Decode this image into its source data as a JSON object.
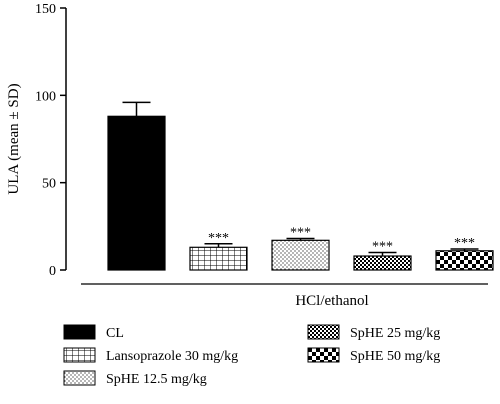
{
  "chart_data": {
    "type": "bar",
    "title": "",
    "xlabel": "HCl/ethanol",
    "ylabel": "ULA (mean ± SD)",
    "ylim": [
      0,
      150
    ],
    "yticks": [
      0,
      50,
      100,
      150
    ],
    "grid": false,
    "legend_position": "bottom",
    "series": [
      {
        "name": "CL",
        "value": 88,
        "error": 8,
        "significance": "",
        "pattern": "solid"
      },
      {
        "name": "Lansoprazole 30 mg/kg",
        "value": 13,
        "error": 2,
        "significance": "***",
        "pattern": "grid"
      },
      {
        "name": "SpHE 12.5 mg/kg",
        "value": 17,
        "error": 1,
        "significance": "***",
        "pattern": "dots"
      },
      {
        "name": "SpHE 25 mg/kg",
        "value": 8,
        "error": 2,
        "significance": "***",
        "pattern": "fine-checker"
      },
      {
        "name": "SpHE 50 mg/kg",
        "value": 11,
        "error": 1,
        "significance": "***",
        "pattern": "checker"
      }
    ]
  }
}
